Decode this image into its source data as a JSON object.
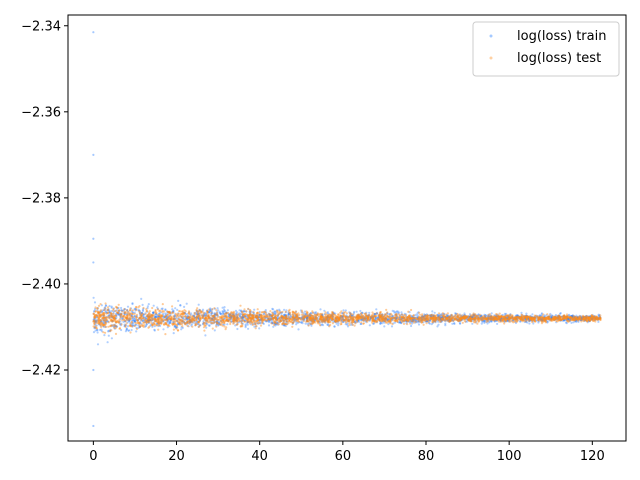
{
  "chart_data": {
    "type": "scatter",
    "title": "",
    "xlabel": "",
    "ylabel": "",
    "xlim": [
      -6.1,
      128.1
    ],
    "ylim": [
      -2.4365,
      -2.3375
    ],
    "grid": false,
    "legend_position": "top-right",
    "x_ticks": [
      0,
      20,
      40,
      60,
      80,
      100,
      120
    ],
    "x_tick_labels": [
      "0",
      "20",
      "40",
      "60",
      "80",
      "100",
      "120"
    ],
    "y_ticks": [
      -2.34,
      -2.36,
      -2.38,
      -2.4,
      -2.42
    ],
    "y_tick_labels": [
      "−2.34",
      "−2.36",
      "−2.38",
      "−2.40",
      "−2.42"
    ],
    "series": [
      {
        "name": "log(loss) train",
        "color": "#1f77ff",
        "x_range": [
          0,
          122
        ],
        "center": -2.408,
        "spread_start": 0.0032,
        "spread_end": 0.0004,
        "outliers": [
          {
            "x": 0,
            "y": -2.3415
          },
          {
            "x": 0,
            "y": -2.37
          },
          {
            "x": 0,
            "y": -2.3895
          },
          {
            "x": 0,
            "y": -2.395
          },
          {
            "x": 0,
            "y": -2.433
          },
          {
            "x": 0,
            "y": -2.42
          }
        ]
      },
      {
        "name": "log(loss) test",
        "color": "#ff8c1a",
        "x_range": [
          0,
          122
        ],
        "center": -2.408,
        "spread_start": 0.0028,
        "spread_end": 0.0003,
        "outliers": []
      }
    ]
  }
}
